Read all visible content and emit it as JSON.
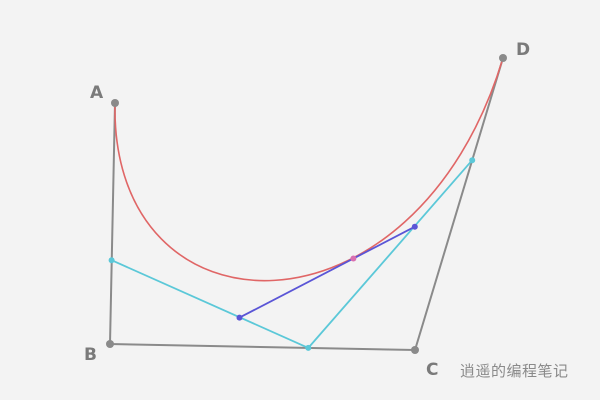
{
  "labels": {
    "a": "A",
    "b": "B",
    "c": "C",
    "d": "D"
  },
  "watermark": "逍遥的编程笔记",
  "colors": {
    "background": "#f3f3f3",
    "control_polygon": "#8a8a8a",
    "control_points": "#8a8a8a",
    "labels": "#7a7a7a",
    "curve": "#e06666",
    "first_level": "#5bc8d8",
    "second_level": "#5a55d6",
    "curve_point": "#d96fb0",
    "watermark": "#8a8a8a"
  }
}
